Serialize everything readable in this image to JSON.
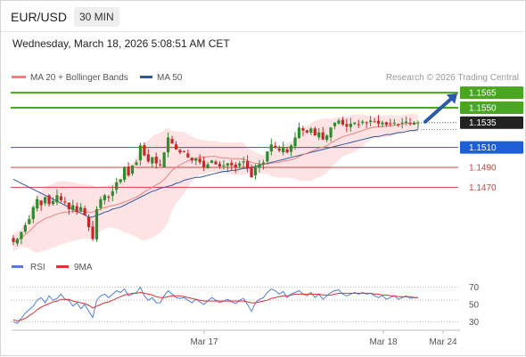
{
  "header": {
    "symbol": "EUR/USD",
    "timeframe": "30 MIN",
    "datetime": "Wednesday, March 18, 2026 5:08:51 AM CET"
  },
  "credit": "Research © 2026 Trading Central",
  "colors": {
    "ma20": "#f08080",
    "bands": "#fcdcdc",
    "ma50": "#2c5aa0",
    "candle_up": "#2e8b2e",
    "candle_down": "#c62828",
    "green_level": "#4aa520",
    "blue_level": "#1f5fd6",
    "red_level": "#d04040",
    "arrow": "#2a5aa8",
    "rsi": "#4f7fd9",
    "rsi_ma": "#e03030"
  },
  "chart_data": [
    {
      "type": "candlestick",
      "legend": [
        "MA 20 + Bollinger Bands",
        "MA 50"
      ],
      "ylim": [
        1.1405,
        1.1575
      ],
      "x_ticks": [
        "Mar 17",
        "Mar 18",
        "Mar 24"
      ],
      "levels": [
        {
          "value": 1.1565,
          "label": "1.1565",
          "kind": "green"
        },
        {
          "value": 1.155,
          "label": "1.1550",
          "kind": "green"
        },
        {
          "value": 1.151,
          "label": "1.1510",
          "kind": "blue"
        },
        {
          "value": 1.149,
          "label": "1.1490",
          "kind": "red"
        },
        {
          "value": 1.147,
          "label": "1.1470",
          "kind": "red"
        }
      ],
      "last_price": {
        "value": 1.1535,
        "label": "1.1535"
      },
      "close": [
        1.1415,
        1.1418,
        1.1425,
        1.1432,
        1.1438,
        1.145,
        1.1458,
        1.1452,
        1.146,
        1.1453,
        1.1456,
        1.1462,
        1.1457,
        1.1455,
        1.1448,
        1.1452,
        1.1445,
        1.145,
        1.1442,
        1.143,
        1.1418,
        1.1448,
        1.1458,
        1.1462,
        1.146,
        1.1466,
        1.1475,
        1.1478,
        1.149,
        1.1482,
        1.1492,
        1.1495,
        1.1512,
        1.1502,
        1.1496,
        1.15,
        1.1494,
        1.1492,
        1.1505,
        1.152,
        1.1514,
        1.1508,
        1.1505,
        1.1506,
        1.15,
        1.1497,
        1.1499,
        1.1495,
        1.149,
        1.1493,
        1.1497,
        1.1493,
        1.1491,
        1.1492,
        1.1494,
        1.1492,
        1.149,
        1.1494,
        1.1496,
        1.1489,
        1.148,
        1.149,
        1.1493,
        1.1495,
        1.1506,
        1.1513,
        1.151,
        1.1507,
        1.151,
        1.1505,
        1.1512,
        1.152,
        1.153,
        1.1527,
        1.1525,
        1.1529,
        1.1522,
        1.1525,
        1.1518,
        1.1522,
        1.153,
        1.1535,
        1.1537,
        1.1533,
        1.1531,
        1.1534,
        1.1535,
        1.1533,
        1.1536,
        1.1535,
        1.1537,
        1.1536,
        1.1534,
        1.1535,
        1.1533,
        1.1534,
        1.1535,
        1.1533,
        1.1535,
        1.1536,
        1.1534,
        1.1535,
        1.1535
      ],
      "ma50": [
        1.1478,
        1.1476,
        1.1474,
        1.1472,
        1.147,
        1.1468,
        1.1466,
        1.1464,
        1.1462,
        1.146,
        1.1458,
        1.1456,
        1.1454,
        1.1452,
        1.145,
        1.1448,
        1.1446,
        1.1444,
        1.1442,
        1.144,
        1.144,
        1.1442,
        1.1443,
        1.1445,
        1.1446,
        1.1448,
        1.1449,
        1.145,
        1.1452,
        1.1454,
        1.1456,
        1.1458,
        1.146,
        1.1462,
        1.1464,
        1.1466,
        1.1467,
        1.1469,
        1.147,
        1.1471,
        1.1472,
        1.1474,
        1.1475,
        1.1477,
        1.1478,
        1.1479,
        1.148,
        1.148,
        1.1481,
        1.1482,
        1.1483,
        1.1484,
        1.1485,
        1.1486,
        1.1486,
        1.1487,
        1.1487,
        1.1488,
        1.1489,
        1.1489,
        1.149,
        1.1491,
        1.1492,
        1.1493,
        1.1494,
        1.1495,
        1.1496,
        1.1497,
        1.1498,
        1.1499,
        1.15,
        1.1501,
        1.1502,
        1.1503,
        1.1504,
        1.1505,
        1.1506,
        1.1507,
        1.1508,
        1.1509,
        1.151,
        1.1511,
        1.1512,
        1.1513,
        1.1514,
        1.1515,
        1.1516,
        1.1517,
        1.1518,
        1.1519,
        1.152,
        1.1521,
        1.1521,
        1.1522,
        1.1523,
        1.1523,
        1.1524,
        1.1525,
        1.1525,
        1.1526,
        1.1527,
        1.1527,
        1.1528
      ]
    },
    {
      "type": "line",
      "legend": [
        "RSI",
        "9MA"
      ],
      "ylim": [
        20,
        80
      ],
      "y_ticks": [
        30,
        50,
        70
      ],
      "levels": [
        30,
        55,
        70
      ],
      "rsi": [
        30,
        28,
        34,
        40,
        44,
        48,
        55,
        58,
        52,
        60,
        55,
        57,
        62,
        56,
        55,
        48,
        52,
        45,
        50,
        42,
        35,
        55,
        60,
        62,
        58,
        62,
        66,
        64,
        68,
        60,
        62,
        64,
        70,
        60,
        55,
        58,
        52,
        52,
        60,
        66,
        62,
        58,
        57,
        58,
        55,
        52,
        56,
        53,
        50,
        54,
        58,
        55,
        52,
        54,
        56,
        53,
        51,
        55,
        57,
        50,
        42,
        52,
        56,
        58,
        64,
        68,
        66,
        62,
        65,
        58,
        62,
        64,
        66,
        62,
        60,
        64,
        58,
        62,
        56,
        60,
        64,
        66,
        67,
        62,
        60,
        62,
        64,
        62,
        64,
        62,
        63,
        60,
        58,
        60,
        56,
        58,
        60,
        56,
        58,
        60,
        57,
        58,
        58
      ],
      "rsi_ma": [
        32,
        31,
        32,
        34,
        37,
        40,
        44,
        47,
        49,
        51,
        53,
        54,
        56,
        56,
        56,
        54,
        53,
        52,
        51,
        49,
        46,
        48,
        50,
        52,
        53,
        55,
        57,
        59,
        61,
        62,
        63,
        63,
        64,
        63,
        62,
        61,
        59,
        58,
        58,
        59,
        60,
        60,
        60,
        59,
        58,
        57,
        56,
        55,
        54,
        54,
        54,
        54,
        54,
        54,
        54,
        54,
        54,
        54,
        54,
        53,
        52,
        52,
        53,
        54,
        55,
        57,
        58,
        59,
        60,
        60,
        61,
        62,
        62,
        62,
        62,
        62,
        62,
        62,
        61,
        61,
        61,
        62,
        63,
        63,
        63,
        63,
        63,
        63,
        63,
        63,
        63,
        62,
        62,
        61,
        61,
        60,
        60,
        59,
        59,
        59,
        59,
        58,
        58
      ]
    }
  ]
}
